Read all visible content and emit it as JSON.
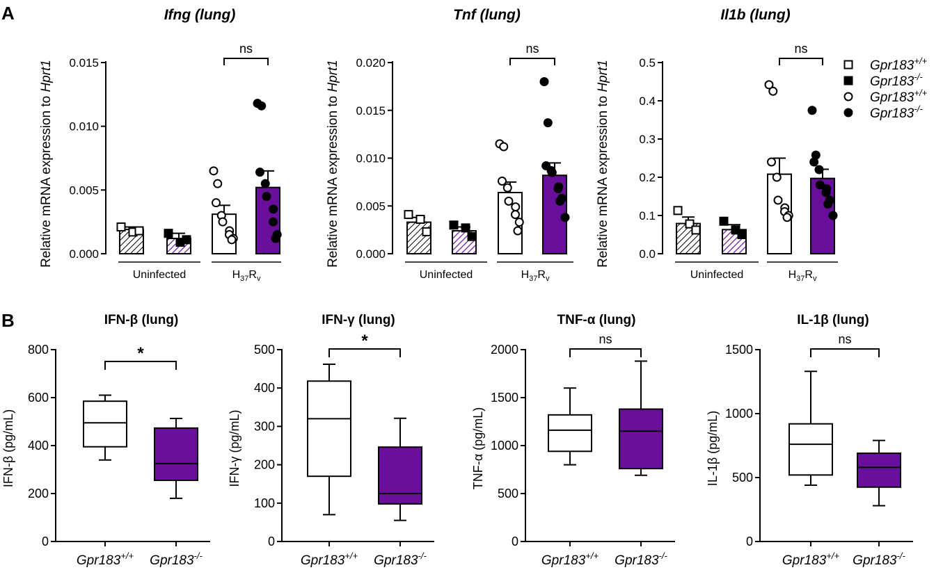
{
  "panel_labels": [
    "A",
    "B"
  ],
  "colors": {
    "purple": "#6a0f9c",
    "black": "#000000",
    "white": "#ffffff"
  },
  "legend": [
    {
      "label": "Gpr183",
      "sup": "+/+",
      "marker": "open-square"
    },
    {
      "label": "Gpr183",
      "sup": "-/-",
      "marker": "filled-square"
    },
    {
      "label": "Gpr183",
      "sup": "+/+",
      "marker": "open-circle"
    },
    {
      "label": "Gpr183",
      "sup": "-/-",
      "marker": "filled-circle"
    }
  ],
  "chart_data": [
    {
      "type": "bar",
      "panel": "A",
      "title": "Ifng (lung)",
      "ylabel_prefix": "Relative mRNA expression to ",
      "ylabel_gene": "Hprt1",
      "ylim": [
        0,
        0.015
      ],
      "yticks": [
        "0.000",
        "0.005",
        "0.010",
        "0.015"
      ],
      "groups": [
        {
          "label": "Uninfected",
          "sublabel": ""
        },
        {
          "label": "H",
          "sub1": "37",
          "mid": "R",
          "sub2": "v"
        }
      ],
      "bars": [
        {
          "series": "Gpr183 +/+",
          "group": "Uninfected",
          "mean": 0.0019,
          "sem": 0.0002,
          "fill": "hatch-black",
          "marker": "open-square",
          "points": [
            0.0021,
            0.0017,
            0.0018
          ]
        },
        {
          "series": "Gpr183 -/-",
          "group": "Uninfected",
          "mean": 0.0012,
          "sem": 0.0004,
          "fill": "hatch-purple",
          "marker": "filled-square",
          "points": [
            0.0016,
            0.0009,
            0.0011
          ]
        },
        {
          "series": "Gpr183 +/+",
          "group": "H37Rv",
          "mean": 0.0031,
          "sem": 0.0007,
          "fill": "white",
          "marker": "open-circle",
          "points": [
            0.0065,
            0.0055,
            0.004,
            0.003,
            0.0025,
            0.0018,
            0.0015,
            0.0012,
            0.0011
          ]
        },
        {
          "series": "Gpr183 -/-",
          "group": "H37Rv",
          "mean": 0.0052,
          "sem": 0.0013,
          "fill": "purple",
          "marker": "filled-circle",
          "points": [
            0.0118,
            0.0116,
            0.0064,
            0.0055,
            0.0045,
            0.0035,
            0.0025,
            0.0015,
            0.0012
          ]
        }
      ],
      "significance": "ns"
    },
    {
      "type": "bar",
      "panel": "A",
      "title": "Tnf (lung)",
      "ylabel_prefix": "Relative mRNA expression to ",
      "ylabel_gene": "Hprt1",
      "ylim": [
        0,
        0.02
      ],
      "yticks": [
        "0.000",
        "0.005",
        "0.010",
        "0.015",
        "0.020"
      ],
      "groups": [
        {
          "label": "Uninfected",
          "sublabel": ""
        },
        {
          "label": "H",
          "sub1": "37",
          "mid": "R",
          "sub2": "v"
        }
      ],
      "bars": [
        {
          "series": "Gpr183 +/+",
          "group": "Uninfected",
          "mean": 0.0033,
          "sem": 0.0005,
          "fill": "hatch-black",
          "marker": "open-square",
          "points": [
            0.0041,
            0.0036,
            0.0023
          ]
        },
        {
          "series": "Gpr183 -/-",
          "group": "Uninfected",
          "mean": 0.0024,
          "sem": 0.0004,
          "fill": "hatch-purple",
          "marker": "filled-square",
          "points": [
            0.003,
            0.0027,
            0.0018
          ]
        },
        {
          "series": "Gpr183 +/+",
          "group": "H37Rv",
          "mean": 0.0064,
          "sem": 0.0011,
          "fill": "white",
          "marker": "open-circle",
          "points": [
            0.0115,
            0.0112,
            0.0076,
            0.0069,
            0.0055,
            0.0049,
            0.0041,
            0.0033,
            0.0024
          ]
        },
        {
          "series": "Gpr183 -/-",
          "group": "H37Rv",
          "mean": 0.0082,
          "sem": 0.0013,
          "fill": "purple",
          "marker": "filled-circle",
          "points": [
            0.018,
            0.0137,
            0.0092,
            0.0087,
            0.0085,
            0.007,
            0.0068,
            0.0058,
            0.0055,
            0.0038
          ]
        }
      ],
      "significance": "ns"
    },
    {
      "type": "bar",
      "panel": "A",
      "title": "Il1b (lung)",
      "ylabel_prefix": "Relative mRNA expression to ",
      "ylabel_gene": "Hprt1",
      "ylim": [
        0,
        0.5
      ],
      "yticks": [
        "0.0",
        "0.1",
        "0.2",
        "0.3",
        "0.4",
        "0.5"
      ],
      "groups": [
        {
          "label": "Uninfected",
          "sublabel": ""
        },
        {
          "label": "H",
          "sub1": "37",
          "mid": "R",
          "sub2": "v"
        }
      ],
      "bars": [
        {
          "series": "Gpr183 +/+",
          "group": "Uninfected",
          "mean": 0.079,
          "sem": 0.017,
          "fill": "hatch-black",
          "marker": "open-square",
          "points": [
            0.113,
            0.078,
            0.062
          ]
        },
        {
          "series": "Gpr183 -/-",
          "group": "Uninfected",
          "mean": 0.063,
          "sem": 0.013,
          "fill": "hatch-purple",
          "marker": "filled-square",
          "points": [
            0.085,
            0.062,
            0.05
          ]
        },
        {
          "series": "Gpr183 +/+",
          "group": "H37Rv",
          "mean": 0.208,
          "sem": 0.042,
          "fill": "white",
          "marker": "open-circle",
          "points": [
            0.442,
            0.425,
            0.24,
            0.2,
            0.14,
            0.12,
            0.11,
            0.1,
            0.095
          ]
        },
        {
          "series": "Gpr183 -/-",
          "group": "H37Rv",
          "mean": 0.197,
          "sem": 0.024,
          "fill": "purple",
          "marker": "filled-circle",
          "points": [
            0.375,
            0.258,
            0.24,
            0.22,
            0.18,
            0.17,
            0.16,
            0.14,
            0.13,
            0.1
          ]
        }
      ],
      "significance": "ns"
    },
    {
      "type": "box",
      "panel": "B",
      "title": "IFN-β (lung)",
      "ylabel": "IFN-β (pg/mL)",
      "ylim": [
        0,
        800
      ],
      "yticks": [
        "0",
        "200",
        "400",
        "600",
        "800"
      ],
      "boxes": [
        {
          "label": "Gpr183",
          "sup": "+/+",
          "min": 340,
          "q1": 395,
          "median": 495,
          "q3": 585,
          "max": 610,
          "fill": "white"
        },
        {
          "label": "Gpr183",
          "sup": "-/-",
          "min": 180,
          "q1": 255,
          "median": 325,
          "q3": 473,
          "max": 513,
          "fill": "purple"
        }
      ],
      "significance": "*"
    },
    {
      "type": "box",
      "panel": "B",
      "title": "IFN-γ (lung)",
      "ylabel": "IFN-γ (pg/mL)",
      "ylim": [
        0,
        500
      ],
      "yticks": [
        "0",
        "100",
        "200",
        "300",
        "400",
        "500"
      ],
      "boxes": [
        {
          "label": "Gpr183",
          "sup": "+/+",
          "min": 70,
          "q1": 170,
          "median": 320,
          "q3": 418,
          "max": 462,
          "fill": "white"
        },
        {
          "label": "Gpr183",
          "sup": "-/-",
          "min": 55,
          "q1": 98,
          "median": 125,
          "q3": 246,
          "max": 321,
          "fill": "purple"
        }
      ],
      "significance": "*"
    },
    {
      "type": "box",
      "panel": "B",
      "title": "TNF-α (lung)",
      "ylabel": "TNF-α (pg/mL)",
      "ylim": [
        0,
        2000
      ],
      "yticks": [
        "0",
        "500",
        "1000",
        "1500",
        "2000"
      ],
      "boxes": [
        {
          "label": "Gpr183",
          "sup": "+/+",
          "min": 800,
          "q1": 940,
          "median": 1160,
          "q3": 1320,
          "max": 1600,
          "fill": "white"
        },
        {
          "label": "Gpr183",
          "sup": "-/-",
          "min": 690,
          "q1": 760,
          "median": 1150,
          "q3": 1380,
          "max": 1880,
          "fill": "purple"
        }
      ],
      "significance": "ns"
    },
    {
      "type": "box",
      "panel": "B",
      "title": "IL-1β (lung)",
      "ylabel": "IL-1β (pg/mL)",
      "ylim": [
        0,
        1500
      ],
      "yticks": [
        "0",
        "500",
        "1000",
        "1500"
      ],
      "boxes": [
        {
          "label": "Gpr183",
          "sup": "+/+",
          "min": 440,
          "q1": 520,
          "median": 760,
          "q3": 920,
          "max": 1330,
          "fill": "white"
        },
        {
          "label": "Gpr183",
          "sup": "-/-",
          "min": 280,
          "q1": 425,
          "median": 580,
          "q3": 690,
          "max": 790,
          "fill": "purple"
        }
      ],
      "significance": "ns"
    }
  ]
}
